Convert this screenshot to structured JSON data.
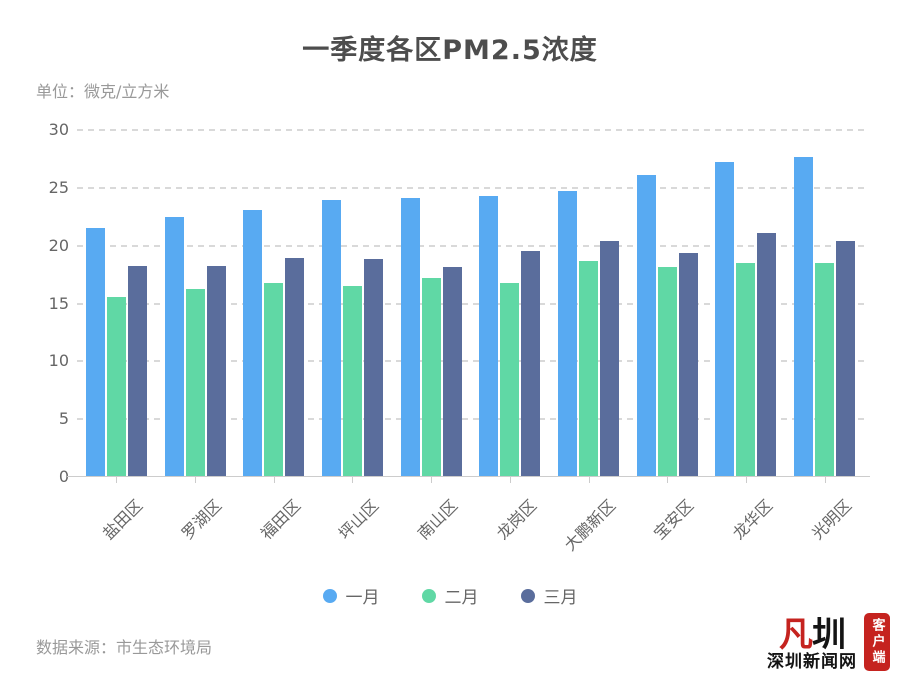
{
  "title": "一季度各区PM2.5浓度",
  "unit_label": "单位：微克/立方米",
  "source_label": "数据来源：市生态环境局",
  "logo": {
    "mark_red": "凡",
    "mark_black": "圳",
    "site_name": "深圳新闻网",
    "badge": "客户端",
    "brand_red": "#c5231f"
  },
  "colors": {
    "background": "#ffffff",
    "title_text": "#4d4d4d",
    "axis_text": "#666666",
    "muted_text": "#999999",
    "gridline": "#d9d9d9",
    "axis_line": "#cccccc"
  },
  "chart_data": {
    "type": "bar",
    "title": "一季度各区PM2.5浓度",
    "unit": "微克/立方米",
    "categories": [
      "盐田区",
      "罗湖区",
      "福田区",
      "坪山区",
      "南山区",
      "龙岗区",
      "大鹏新区",
      "宝安区",
      "龙华区",
      "光明区"
    ],
    "series": [
      {
        "name": "一月",
        "color": "#58aaf2",
        "values": [
          21.5,
          22.5,
          23.1,
          23.9,
          24.1,
          24.3,
          24.7,
          26.1,
          27.2,
          27.7
        ]
      },
      {
        "name": "二月",
        "color": "#60d8a5",
        "values": [
          15.5,
          16.2,
          16.7,
          16.5,
          17.2,
          16.7,
          18.6,
          18.1,
          18.5,
          18.5
        ]
      },
      {
        "name": "三月",
        "color": "#5a6d9c",
        "values": [
          18.2,
          18.2,
          18.9,
          18.8,
          18.1,
          19.5,
          20.4,
          19.3,
          21.1,
          20.4
        ]
      }
    ],
    "xlabel": "",
    "ylabel": "微克/立方米",
    "ylim": [
      0,
      30
    ],
    "yticks": [
      0,
      5,
      10,
      15,
      20,
      25,
      30
    ],
    "grid": true,
    "gridline_style": "dashed",
    "legend_position": "bottom",
    "x_label_rotation": 45
  }
}
